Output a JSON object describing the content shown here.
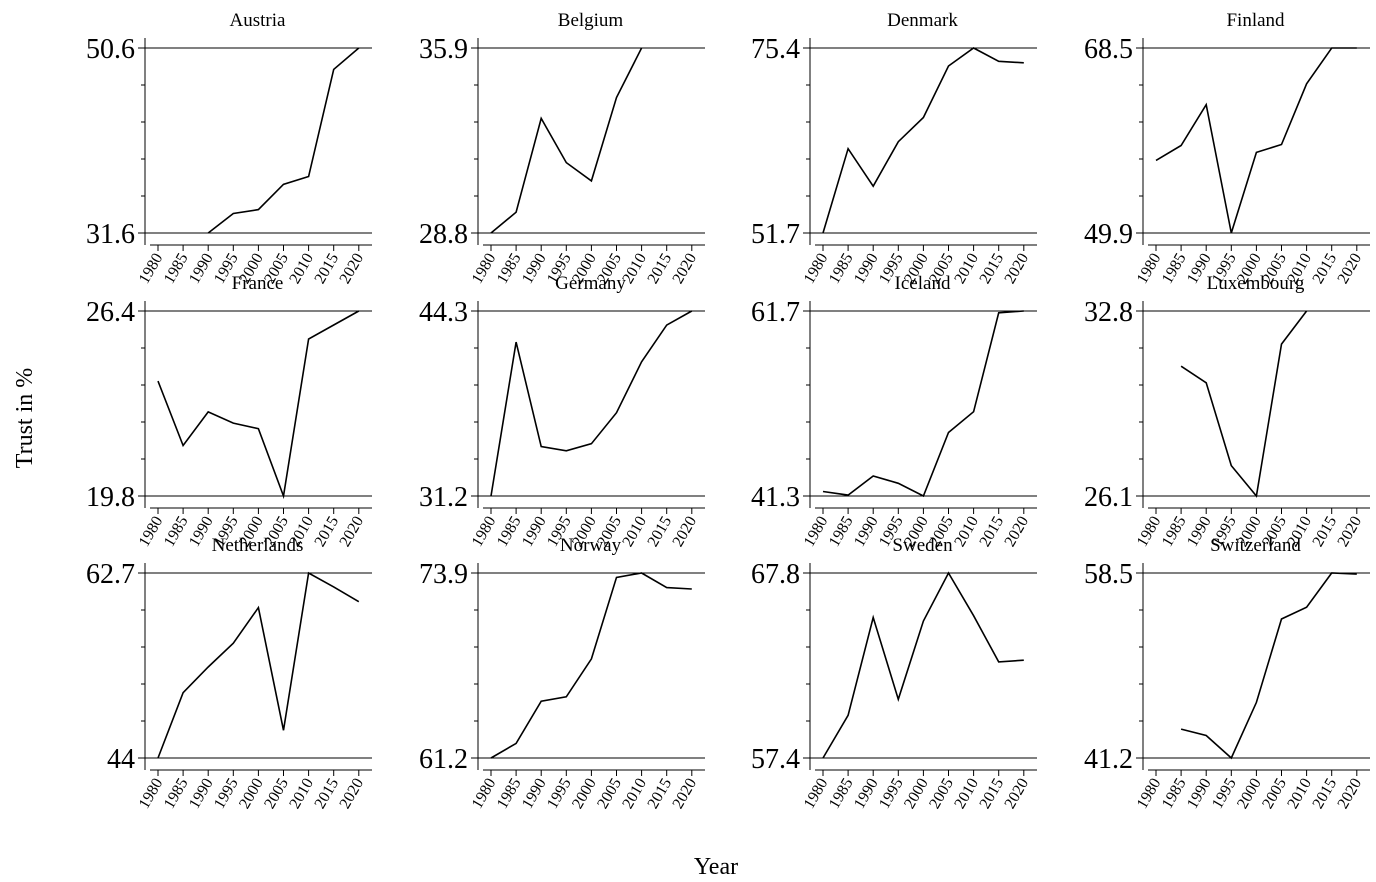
{
  "chart_data": {
    "type": "line",
    "xlabel": "Year",
    "ylabel": "Trust in %",
    "x": [
      1980,
      1985,
      1990,
      1995,
      2000,
      2005,
      2010,
      2015,
      2020
    ],
    "panels": [
      {
        "title": "Austria",
        "ylim": [
          31.6,
          50.6
        ],
        "yticks": [
          "31.6",
          "50.6"
        ],
        "values": [
          null,
          null,
          31.6,
          33.6,
          34.0,
          36.6,
          37.4,
          48.4,
          50.6
        ]
      },
      {
        "title": "Belgium",
        "ylim": [
          28.8,
          35.9
        ],
        "yticks": [
          "28.8",
          "35.9"
        ],
        "values": [
          28.8,
          29.6,
          33.2,
          31.5,
          30.8,
          34.0,
          35.9,
          null,
          null
        ]
      },
      {
        "title": "Denmark",
        "ylim": [
          51.7,
          75.4
        ],
        "yticks": [
          "51.7",
          "75.4"
        ],
        "values": [
          51.7,
          62.5,
          57.7,
          63.4,
          66.5,
          73.1,
          75.4,
          73.7,
          73.5
        ]
      },
      {
        "title": "Finland",
        "ylim": [
          49.9,
          68.5
        ],
        "yticks": [
          "49.9",
          "68.5"
        ],
        "values": [
          57.2,
          58.7,
          62.8,
          49.9,
          58.0,
          58.8,
          64.9,
          68.5,
          68.5
        ]
      },
      {
        "title": "France",
        "ylim": [
          19.8,
          26.4
        ],
        "yticks": [
          "19.8",
          "26.4"
        ],
        "values": [
          23.9,
          21.6,
          22.8,
          22.4,
          22.2,
          19.8,
          25.4,
          25.9,
          26.4
        ]
      },
      {
        "title": "Germany",
        "ylim": [
          31.2,
          44.3
        ],
        "yticks": [
          "31.2",
          "44.3"
        ],
        "values": [
          31.2,
          42.1,
          34.7,
          34.4,
          34.9,
          37.1,
          40.7,
          43.3,
          44.3
        ]
      },
      {
        "title": "Iceland",
        "ylim": [
          41.3,
          61.7
        ],
        "yticks": [
          "41.3",
          "61.7"
        ],
        "values": [
          41.8,
          41.4,
          43.5,
          42.7,
          41.3,
          48.3,
          50.6,
          61.5,
          61.7
        ]
      },
      {
        "title": "Luxembourg",
        "ylim": [
          26.1,
          32.8
        ],
        "yticks": [
          "26.1",
          "32.8"
        ],
        "values": [
          null,
          30.8,
          30.2,
          27.2,
          26.1,
          31.6,
          32.8,
          null,
          null
        ]
      },
      {
        "title": "Netherlands",
        "ylim": [
          44,
          62.7
        ],
        "yticks": [
          "44",
          "62.7"
        ],
        "values": [
          44,
          50.6,
          53.2,
          55.6,
          59.2,
          46.8,
          62.7,
          61.3,
          59.8
        ]
      },
      {
        "title": "Norway",
        "ylim": [
          61.2,
          73.9
        ],
        "yticks": [
          "61.2",
          "73.9"
        ],
        "values": [
          61.2,
          62.2,
          65.1,
          65.4,
          68.0,
          73.6,
          73.9,
          72.9,
          72.8
        ]
      },
      {
        "title": "Sweden",
        "ylim": [
          57.4,
          67.8
        ],
        "yticks": [
          "57.4",
          "67.8"
        ],
        "values": [
          57.4,
          59.8,
          65.3,
          60.7,
          65.1,
          67.8,
          65.4,
          62.8,
          62.9
        ]
      },
      {
        "title": "Switzerland",
        "ylim": [
          41.2,
          58.5
        ],
        "yticks": [
          "41.2",
          "58.5"
        ],
        "values": [
          null,
          43.9,
          43.3,
          41.2,
          46.4,
          54.2,
          55.3,
          58.5,
          58.4
        ]
      }
    ]
  }
}
